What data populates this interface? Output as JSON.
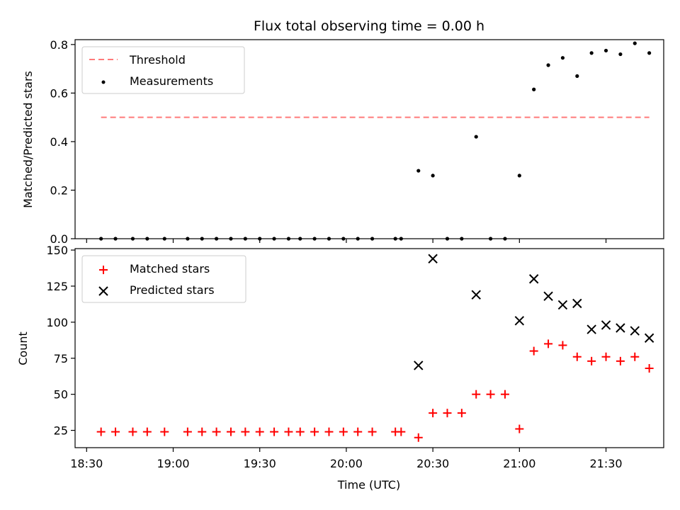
{
  "title": "Flux total observing time = 0.00 h",
  "colors": {
    "threshold": "#ff7a7a",
    "measurements": "#000000",
    "matched": "#ff0000",
    "predicted": "#000000"
  },
  "chart_data": [
    {
      "type": "scatter",
      "title": "Flux total observing time = 0.00 h",
      "xlabel": "",
      "ylabel": "Matched/Predicted stars",
      "xlim": [
        "18:26",
        "21:50"
      ],
      "ylim": [
        0,
        0.82
      ],
      "x_ticks": [
        "18:30",
        "19:00",
        "19:30",
        "20:00",
        "20:30",
        "21:00",
        "21:30"
      ],
      "y_ticks": [
        "0.0",
        "0.2",
        "0.4",
        "0.6",
        "0.8"
      ],
      "legend": {
        "position": "upper left",
        "entries": [
          "Threshold",
          "Measurements"
        ]
      },
      "series": [
        {
          "name": "Threshold",
          "style": "dashed-line",
          "x": [
            "18:35",
            "21:45"
          ],
          "y": [
            0.5,
            0.5
          ]
        },
        {
          "name": "Measurements",
          "style": "dots",
          "x": [
            "18:35",
            "18:40",
            "18:46",
            "18:51",
            "18:57",
            "19:05",
            "19:10",
            "19:15",
            "19:20",
            "19:25",
            "19:30",
            "19:35",
            "19:40",
            "19:44",
            "19:49",
            "19:54",
            "19:59",
            "20:04",
            "20:09",
            "20:17",
            "20:19",
            "20:25",
            "20:30",
            "20:35",
            "20:40",
            "20:45",
            "20:50",
            "20:55",
            "21:00",
            "21:05",
            "21:10",
            "21:15",
            "21:20",
            "21:25",
            "21:30",
            "21:35",
            "21:40",
            "21:45"
          ],
          "y": [
            0,
            0,
            0,
            0,
            0,
            0,
            0,
            0,
            0,
            0,
            0,
            0,
            0,
            0,
            0,
            0,
            0,
            0,
            0,
            0,
            0,
            0.28,
            0.26,
            0,
            0,
            0.42,
            0,
            0,
            0.26,
            0.615,
            0.715,
            0.745,
            0.67,
            0.765,
            0.775,
            0.76,
            0.805,
            0.765
          ]
        }
      ]
    },
    {
      "type": "scatter",
      "xlabel": "Time (UTC)",
      "ylabel": "Count",
      "xlim": [
        "18:26",
        "21:50"
      ],
      "ylim": [
        13,
        151
      ],
      "x_ticks": [
        "18:30",
        "19:00",
        "19:30",
        "20:00",
        "20:30",
        "21:00",
        "21:30"
      ],
      "y_ticks": [
        "25",
        "50",
        "75",
        "100",
        "125",
        "150"
      ],
      "legend": {
        "position": "upper left",
        "entries": [
          "Matched stars",
          "Predicted stars"
        ]
      },
      "series": [
        {
          "name": "Matched stars",
          "marker": "+",
          "x": [
            "18:35",
            "18:40",
            "18:46",
            "18:51",
            "18:57",
            "19:05",
            "19:10",
            "19:15",
            "19:20",
            "19:25",
            "19:30",
            "19:35",
            "19:40",
            "19:44",
            "19:49",
            "19:54",
            "19:59",
            "20:04",
            "20:09",
            "20:17",
            "20:19",
            "20:25",
            "20:30",
            "20:35",
            "20:40",
            "20:45",
            "20:50",
            "20:55",
            "21:00",
            "21:05",
            "21:10",
            "21:15",
            "21:20",
            "21:25",
            "21:30",
            "21:35",
            "21:40",
            "21:45"
          ],
          "y": [
            24,
            24,
            24,
            24,
            24,
            24,
            24,
            24,
            24,
            24,
            24,
            24,
            24,
            24,
            24,
            24,
            24,
            24,
            24,
            24,
            24,
            20,
            37,
            37,
            37,
            50,
            50,
            50,
            26,
            80,
            85,
            84,
            76,
            73,
            76,
            73,
            76,
            68
          ]
        },
        {
          "name": "Predicted stars",
          "marker": "x",
          "x": [
            "20:25",
            "20:30",
            "20:45",
            "21:00",
            "21:05",
            "21:10",
            "21:15",
            "21:20",
            "21:25",
            "21:30",
            "21:35",
            "21:40",
            "21:45"
          ],
          "y": [
            70,
            144,
            119,
            101,
            130,
            118,
            112,
            113,
            95,
            98,
            96,
            94,
            89
          ]
        }
      ]
    }
  ]
}
